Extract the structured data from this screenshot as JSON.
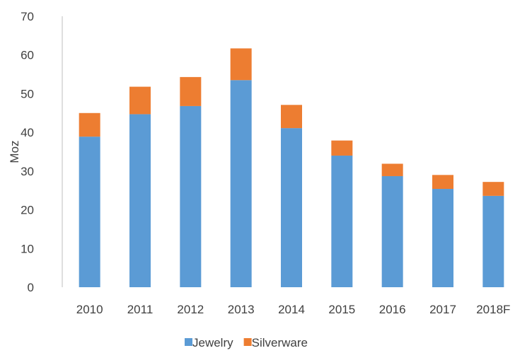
{
  "chart_data": {
    "type": "bar",
    "stacked": true,
    "categories": [
      "2010",
      "2011",
      "2012",
      "2013",
      "2014",
      "2015",
      "2016",
      "2017",
      "2018F"
    ],
    "series": [
      {
        "name": "Jewelry",
        "values": [
          38.9,
          44.7,
          46.8,
          53.5,
          41.1,
          34.0,
          28.7,
          25.4,
          23.6
        ],
        "color": "#5b9bd5"
      },
      {
        "name": "Silverware",
        "values": [
          6.1,
          7.1,
          7.5,
          8.2,
          6.0,
          3.9,
          3.2,
          3.6,
          3.6
        ],
        "color": "#ed7d31"
      }
    ],
    "title": "",
    "xlabel": "",
    "ylabel": "Moz",
    "ylim": [
      0,
      70
    ],
    "yticks": [
      "0",
      "10",
      "20",
      "30",
      "40",
      "50",
      "60",
      "70"
    ],
    "grid": false,
    "legend_position": "bottom"
  }
}
